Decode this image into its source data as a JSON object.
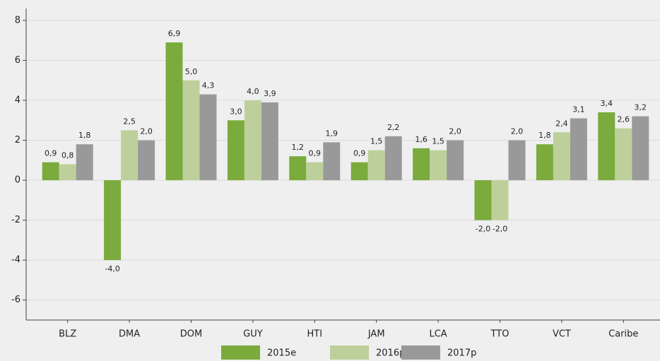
{
  "chart_data": {
    "type": "bar",
    "categories": [
      "BLZ",
      "DMA",
      "DOM",
      "GUY",
      "HTI",
      "JAM",
      "LCA",
      "TTO",
      "VCT",
      "Caribe"
    ],
    "series": [
      {
        "name": "2015e",
        "color": "#7aab3c",
        "values": [
          0.9,
          -4.0,
          6.9,
          3.0,
          1.2,
          0.9,
          1.6,
          -2.0,
          1.8,
          3.4
        ],
        "value_labels": [
          "0,9",
          "-4,0",
          "6,9",
          "3,0",
          "1,2",
          "0,9",
          "1,6",
          "-2,0",
          "1,8",
          "3,4"
        ]
      },
      {
        "name": "2016p",
        "color": "#bdd09b",
        "values": [
          0.8,
          2.5,
          5.0,
          4.0,
          0.9,
          1.5,
          1.5,
          -2.0,
          2.4,
          2.6
        ],
        "value_labels": [
          "0,8",
          "2,5",
          "5,0",
          "4,0",
          "0,9",
          "1,5",
          "1,5",
          "-2,0",
          "2,4",
          "2,6"
        ]
      },
      {
        "name": "2017p",
        "color": "#999999",
        "values": [
          1.8,
          2.0,
          4.3,
          3.9,
          1.9,
          2.2,
          2.0,
          2.0,
          3.1,
          3.2
        ],
        "value_labels": [
          "1,8",
          "2,0",
          "4,3",
          "3,9",
          "1,9",
          "2,2",
          "2,0",
          "2,0",
          "3,1",
          "3,2"
        ]
      }
    ],
    "ylim": [
      -7,
      8.6
    ],
    "yticks": [
      -6,
      -4,
      -2,
      0,
      2,
      4,
      6,
      8
    ],
    "grid": true,
    "legend": "bottom"
  }
}
